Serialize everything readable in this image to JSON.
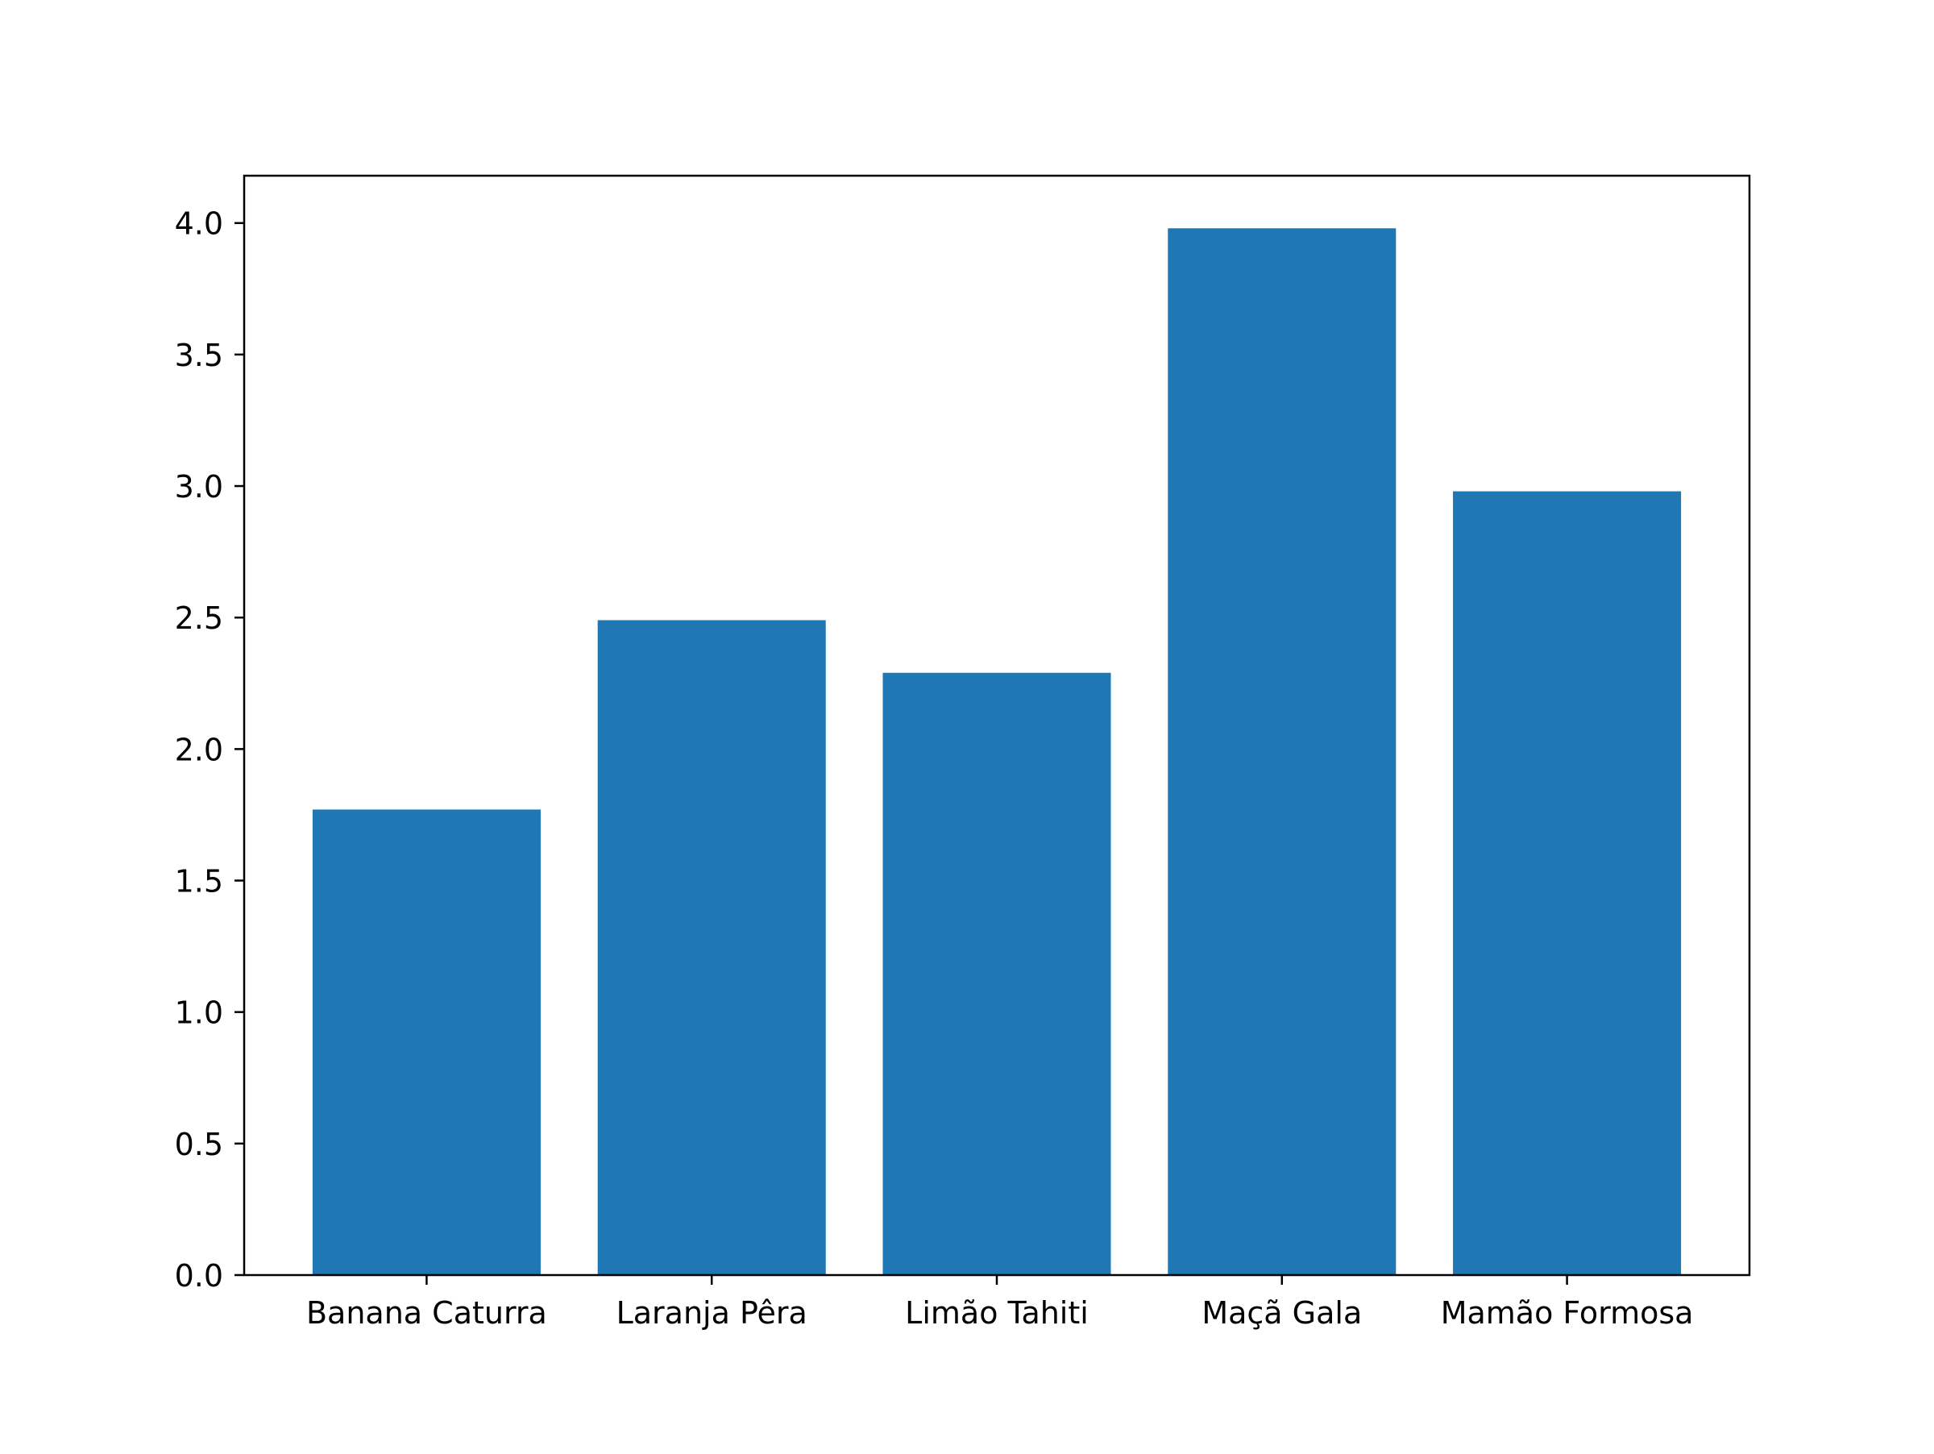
{
  "chart_data": {
    "type": "bar",
    "title": "",
    "xlabel": "",
    "ylabel": "",
    "categories": [
      "Banana Caturra",
      "Laranja Pêra",
      "Limão Tahiti",
      "Maçã Gala",
      "Mamão Formosa"
    ],
    "values": [
      1.77,
      2.49,
      2.29,
      3.98,
      2.98
    ],
    "ylim": [
      0,
      4.18
    ],
    "yticks": [
      0.0,
      0.5,
      1.0,
      1.5,
      2.0,
      2.5,
      3.0,
      3.5,
      4.0
    ],
    "ytick_labels": [
      "0.0",
      "0.5",
      "1.0",
      "1.5",
      "2.0",
      "2.5",
      "3.0",
      "3.5",
      "4.0"
    ],
    "bar_color": "#1f77b4",
    "grid": false,
    "legend": "none"
  }
}
